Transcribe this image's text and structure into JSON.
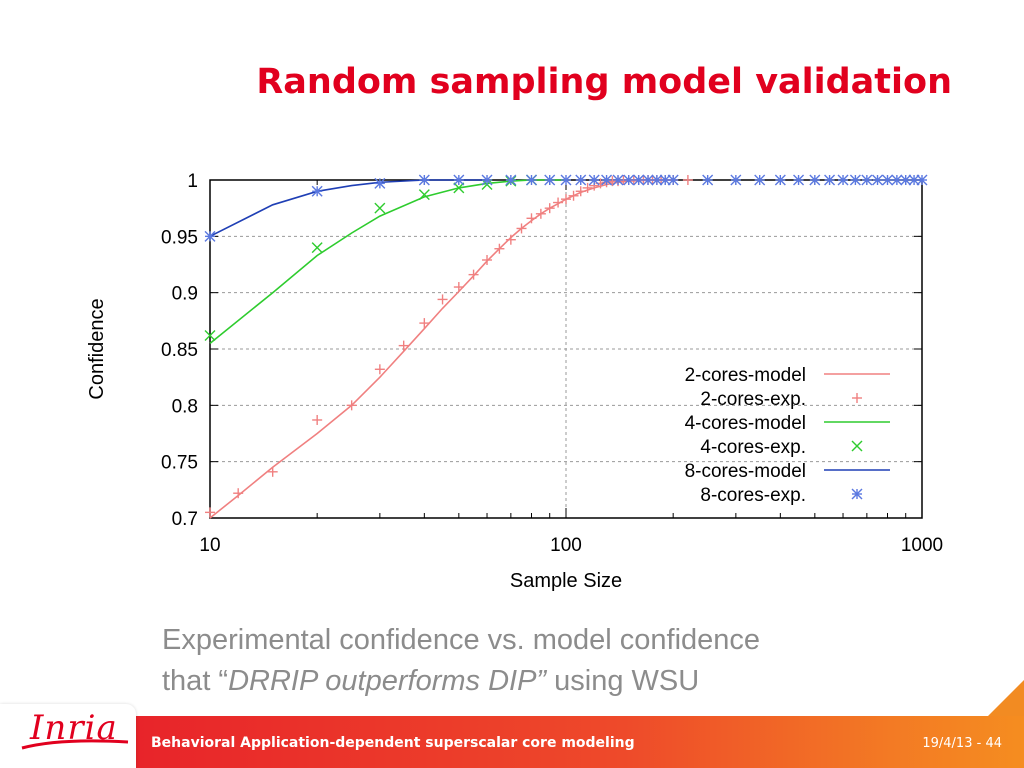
{
  "slide": {
    "title": "Random sampling model validation",
    "caption_line1": "Experimental confidence vs. model confidence",
    "caption_line2_prefix": "that “",
    "caption_line2_emph": "DRRIP outperforms DIP”",
    "caption_line2_suffix": " using WSU"
  },
  "footer": {
    "logo_text": "Inria",
    "text": "Behavioral Application-dependent superscalar core modeling",
    "date": "19/4/13",
    "page_sep": " - ",
    "page": "44"
  },
  "colors": {
    "title": "#e1001e",
    "series_2cores": "#f08080",
    "series_4cores": "#2ecc2e",
    "series_8cores": "#1f3fb5",
    "series_8cores_points": "#5a78e0"
  },
  "chart_data": {
    "type": "line",
    "title": "",
    "xlabel": "Sample Size",
    "ylabel": "Confidence",
    "xscale": "log",
    "xlim": [
      10,
      1000
    ],
    "ylim": [
      0.7,
      1.0
    ],
    "xticks": [
      10,
      100,
      1000
    ],
    "xtick_labels": [
      "10",
      "100",
      "1000"
    ],
    "yticks": [
      0.7,
      0.75,
      0.8,
      0.85,
      0.9,
      0.95,
      1.0
    ],
    "ytick_labels": [
      "0.7",
      "0.75",
      "0.8",
      "0.85",
      "0.9",
      "0.95",
      "1"
    ],
    "grid": "major gridlines at labelled ticks",
    "legend_position": "right",
    "series": [
      {
        "name": "2-cores-model",
        "kind": "line",
        "color": "#f08080",
        "x": [
          10,
          12,
          15,
          20,
          25,
          30,
          35,
          40,
          45,
          50,
          55,
          60,
          65,
          70,
          75,
          80,
          85,
          90,
          95,
          100,
          110,
          120,
          130,
          140,
          150,
          175,
          200
        ],
        "y": [
          0.7,
          0.72,
          0.745,
          0.775,
          0.8,
          0.825,
          0.848,
          0.868,
          0.886,
          0.901,
          0.915,
          0.928,
          0.939,
          0.949,
          0.957,
          0.964,
          0.97,
          0.975,
          0.979,
          0.983,
          0.989,
          0.993,
          0.996,
          0.998,
          0.999,
          1.0,
          1.0
        ]
      },
      {
        "name": "2-cores-exp.",
        "kind": "points",
        "marker": "plus",
        "color": "#f08080",
        "x": [
          10,
          12,
          15,
          20,
          25,
          30,
          35,
          40,
          45,
          50,
          55,
          60,
          65,
          70,
          75,
          80,
          85,
          90,
          95,
          100,
          105,
          110,
          115,
          120,
          125,
          130,
          135,
          140,
          145,
          150,
          155,
          160,
          165,
          170,
          175,
          180,
          185,
          190,
          200,
          220
        ],
        "y": [
          0.705,
          0.722,
          0.741,
          0.787,
          0.8,
          0.832,
          0.853,
          0.873,
          0.894,
          0.905,
          0.916,
          0.929,
          0.939,
          0.947,
          0.957,
          0.966,
          0.97,
          0.975,
          0.98,
          0.983,
          0.986,
          0.99,
          0.993,
          0.995,
          0.997,
          0.998,
          0.999,
          0.999,
          1.0,
          1.0,
          1.0,
          1.0,
          1.0,
          1.0,
          1.0,
          1.0,
          1.0,
          1.0,
          1.0,
          1.0
        ]
      },
      {
        "name": "4-cores-model",
        "kind": "line",
        "color": "#2ecc2e",
        "x": [
          10,
          15,
          20,
          25,
          30,
          40,
          50,
          60,
          70,
          80,
          100
        ],
        "y": [
          0.855,
          0.9,
          0.933,
          0.953,
          0.968,
          0.985,
          0.993,
          0.997,
          0.999,
          1.0,
          1.0
        ]
      },
      {
        "name": "4-cores-exp.",
        "kind": "points",
        "marker": "x",
        "color": "#2ecc2e",
        "x": [
          10,
          20,
          30,
          40,
          50,
          60,
          70,
          80
        ],
        "y": [
          0.862,
          0.94,
          0.975,
          0.987,
          0.993,
          0.996,
          0.999,
          1.0
        ]
      },
      {
        "name": "8-cores-model",
        "kind": "line",
        "color": "#1f3fb5",
        "x": [
          10,
          15,
          20,
          25,
          30,
          40,
          50,
          60
        ],
        "y": [
          0.95,
          0.978,
          0.99,
          0.995,
          0.998,
          1.0,
          1.0,
          1.0
        ]
      },
      {
        "name": "8-cores-exp.",
        "kind": "points",
        "marker": "asterisk",
        "color": "#5a78e0",
        "x": [
          10,
          20,
          30,
          40,
          50,
          60,
          70,
          80,
          90,
          100,
          110,
          120,
          130,
          140,
          150,
          160,
          170,
          180,
          190,
          200,
          250,
          300,
          350,
          400,
          450,
          500,
          550,
          600,
          650,
          700,
          750,
          800,
          850,
          900,
          950,
          1000
        ],
        "y": [
          0.95,
          0.99,
          0.997,
          1.0,
          1.0,
          1.0,
          1.0,
          1.0,
          1.0,
          1.0,
          1.0,
          1.0,
          1.0,
          1.0,
          1.0,
          1.0,
          1.0,
          1.0,
          1.0,
          1.0,
          1.0,
          1.0,
          1.0,
          1.0,
          1.0,
          1.0,
          1.0,
          1.0,
          1.0,
          1.0,
          1.0,
          1.0,
          1.0,
          1.0,
          1.0,
          1.0
        ]
      }
    ]
  }
}
